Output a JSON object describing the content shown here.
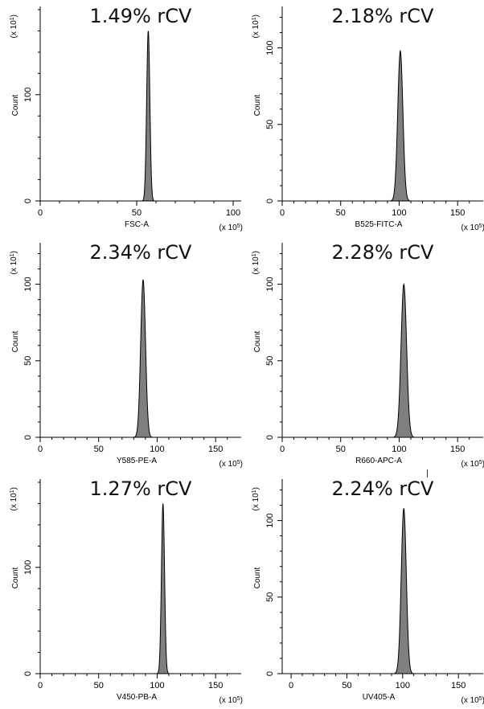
{
  "colors": {
    "fill": "#7f7f7f",
    "stroke": "#000000",
    "axis": "#000000"
  },
  "chart_data": [
    {
      "type": "area",
      "title": "1.49% rCV",
      "xlabel": "FSC-A",
      "xunit": "(x 10^5)",
      "ylabel": "Count",
      "yunit": "(x 10^1)",
      "xlim": [
        0,
        100
      ],
      "ylim": [
        0,
        180
      ],
      "xticks": [
        0,
        50,
        100
      ],
      "yticks": [
        0,
        100
      ],
      "peak": {
        "center": 56,
        "sd": 0.83,
        "height": 160
      },
      "grid": false
    },
    {
      "type": "area",
      "title": "2.18% rCV",
      "xlabel": "B525-FITC-A",
      "xunit": "(x 10^5)",
      "ylabel": "Count",
      "yunit": "(x 10^1)",
      "xlim": [
        0,
        165
      ],
      "ylim": [
        0,
        125
      ],
      "xticks": [
        0,
        50,
        100,
        150
      ],
      "yticks": [
        0,
        50,
        100
      ],
      "peak": {
        "center": 101,
        "sd": 2.2,
        "height": 98
      },
      "grid": false
    },
    {
      "type": "area",
      "title": "2.34% rCV",
      "xlabel": "Y585-PE-A",
      "xunit": "(x 10^5)",
      "ylabel": "Count",
      "yunit": "(x 10^1)",
      "xlim": [
        0,
        165
      ],
      "ylim": [
        0,
        125
      ],
      "xticks": [
        0,
        50,
        100,
        150
      ],
      "yticks": [
        0,
        50,
        100
      ],
      "peak": {
        "center": 88,
        "sd": 2.06,
        "height": 103
      },
      "grid": false
    },
    {
      "type": "area",
      "title": "2.28% rCV",
      "xlabel": "R660-APC-A",
      "xunit": "(x 10^5)",
      "ylabel": "Count",
      "yunit": "(x 10^1)",
      "xlim": [
        0,
        165
      ],
      "ylim": [
        0,
        125
      ],
      "xticks": [
        0,
        50,
        100,
        150
      ],
      "yticks": [
        0,
        50,
        100
      ],
      "peak": {
        "center": 104,
        "sd": 2.37,
        "height": 100
      },
      "grid": false
    },
    {
      "type": "area",
      "title": "1.27% rCV",
      "xlabel": "V450-PB-A",
      "xunit": "(x 10^5)",
      "ylabel": "Count",
      "yunit": "(x 10^1)",
      "xlim": [
        0,
        165
      ],
      "ylim": [
        0,
        180
      ],
      "xticks": [
        0,
        50,
        100,
        150
      ],
      "yticks": [
        0,
        100
      ],
      "peak": {
        "center": 105,
        "sd": 1.33,
        "height": 160
      },
      "grid": false
    },
    {
      "type": "area",
      "title": "2.24% rCV",
      "xlabel": "UV405-A",
      "xunit": "(x 10^5)",
      "ylabel": "Count",
      "yunit": "(x 10^1)",
      "xlim": [
        -8,
        165
      ],
      "ylim": [
        0,
        125
      ],
      "xticks": [
        0,
        50,
        100,
        150
      ],
      "yticks": [
        0,
        50,
        100
      ],
      "peak": {
        "center": 101,
        "sd": 2.26,
        "height": 108
      },
      "grid": false
    }
  ]
}
